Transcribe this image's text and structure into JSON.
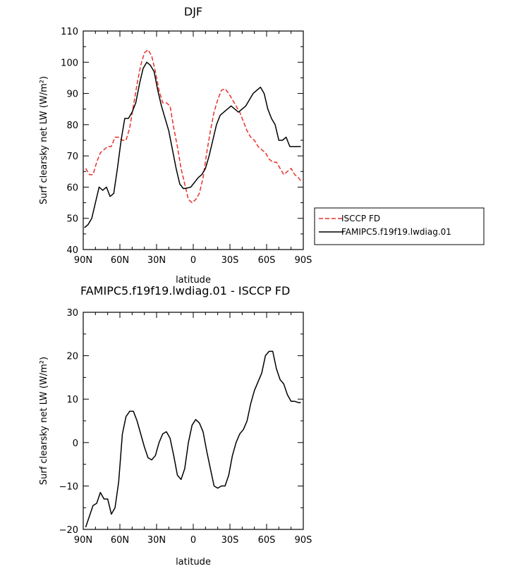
{
  "chart_data": [
    {
      "type": "line",
      "title": "DJF",
      "xlabel": "latitude",
      "ylabel": "Surf clearsky net LW (W/m²)",
      "x_tick_labels": [
        "90N",
        "60N",
        "30N",
        "0",
        "30S",
        "60S",
        "90S"
      ],
      "x_ticks": [
        90,
        60,
        30,
        0,
        -30,
        -60,
        -90
      ],
      "xlim": [
        90,
        -90
      ],
      "ylim": [
        40,
        110
      ],
      "y_ticks": [
        40,
        50,
        60,
        70,
        80,
        90,
        100,
        110
      ],
      "legend_position": "outside-right",
      "series": [
        {
          "name": "ISCCP FD",
          "color": "#e8312a",
          "dash": "dashed",
          "x": [
            88,
            85,
            82,
            79,
            76,
            73,
            70,
            67,
            64,
            61,
            58,
            55,
            52,
            49,
            46,
            43,
            40,
            37,
            34,
            31,
            28,
            25,
            22,
            19,
            16,
            13,
            10,
            7,
            4,
            1,
            -2,
            -5,
            -8,
            -11,
            -14,
            -17,
            -20,
            -23,
            -26,
            -29,
            -32,
            -35,
            -38,
            -41,
            -44,
            -47,
            -50,
            -53,
            -56,
            -59,
            -62,
            -65,
            -68,
            -71,
            -74,
            -77,
            -80,
            -83,
            -86,
            -88
          ],
          "y": [
            66,
            64,
            64,
            68,
            71,
            72,
            73,
            73,
            76,
            76,
            75,
            75,
            79,
            86,
            93,
            99,
            103,
            104,
            102,
            97,
            91,
            87,
            87,
            86,
            79,
            73,
            66,
            61,
            56,
            55,
            56,
            58,
            63,
            71,
            78,
            84,
            88,
            91,
            91.5,
            90,
            88,
            86,
            84,
            81,
            78,
            76,
            75,
            73,
            72,
            71,
            69,
            68,
            68,
            66,
            64,
            65,
            66,
            64,
            63,
            62
          ]
        },
        {
          "name": "FAMIPC5.f19f19.lwdiag.01",
          "color": "#000000",
          "dash": "solid",
          "x": [
            89,
            86,
            83,
            80,
            77,
            74,
            71,
            68,
            65,
            62,
            59,
            56,
            53,
            50,
            47,
            44,
            41,
            38,
            35,
            32,
            29,
            26,
            23,
            20,
            17,
            14,
            11,
            8,
            5,
            2,
            -1,
            -4,
            -7,
            -10,
            -13,
            -16,
            -19,
            -22,
            -25,
            -28,
            -31,
            -34,
            -37,
            -40,
            -43,
            -46,
            -49,
            -52,
            -55,
            -58,
            -61,
            -64,
            -67,
            -70,
            -73,
            -76,
            -79,
            -82,
            -85,
            -88
          ],
          "y": [
            47,
            48,
            50,
            55,
            60,
            59,
            60,
            57,
            58,
            66,
            75,
            82,
            82,
            84,
            87,
            93,
            98,
            100,
            99,
            97,
            91,
            86,
            82,
            78,
            72,
            66,
            61,
            59.5,
            59.7,
            60,
            61.5,
            63,
            64,
            66,
            70,
            75,
            80,
            83,
            84,
            85,
            86,
            85,
            84,
            85,
            86,
            88,
            90,
            91,
            92,
            90,
            85,
            82,
            80,
            75,
            75,
            76,
            73,
            73,
            73,
            73
          ]
        }
      ]
    },
    {
      "type": "line",
      "title": "FAMIPC5.f19f19.lwdiag.01 - ISCCP FD",
      "xlabel": "latitude",
      "ylabel": "Surf clearsky net LW (W/m²)",
      "x_tick_labels": [
        "90N",
        "60N",
        "30N",
        "0",
        "30S",
        "60S",
        "90S"
      ],
      "x_ticks": [
        90,
        60,
        30,
        0,
        -30,
        -60,
        -90
      ],
      "xlim": [
        90,
        -90
      ],
      "ylim": [
        -20,
        30
      ],
      "y_ticks": [
        -20,
        -10,
        0,
        10,
        20,
        30
      ],
      "series": [
        {
          "color": "#000000",
          "x": [
            88,
            85,
            82,
            79,
            76,
            73,
            70,
            67,
            64,
            61,
            58,
            55,
            52,
            49,
            46,
            43,
            40,
            37,
            34,
            31,
            28,
            25,
            22,
            19,
            16,
            13,
            10,
            7,
            4,
            1,
            -2,
            -5,
            -8,
            -11,
            -14,
            -17,
            -20,
            -23,
            -26,
            -29,
            -32,
            -35,
            -38,
            -41,
            -44,
            -47,
            -50,
            -53,
            -56,
            -59,
            -62,
            -65,
            -68,
            -71,
            -74,
            -77,
            -80,
            -83,
            -86,
            -88
          ],
          "y": [
            -19.5,
            -17,
            -14.5,
            -14,
            -11.5,
            -13,
            -13,
            -16.5,
            -15,
            -9,
            2,
            6,
            7.2,
            7.2,
            5,
            2,
            -1,
            -3.5,
            -4,
            -3,
            0,
            2,
            2.5,
            1,
            -3,
            -7.5,
            -8.5,
            -6,
            0,
            4,
            5.3,
            4.5,
            2.5,
            -2,
            -6,
            -10,
            -10.5,
            -10,
            -10,
            -7.5,
            -3,
            0,
            2,
            3,
            5,
            9,
            12,
            14,
            16,
            20,
            21,
            21,
            17,
            14.5,
            13.5,
            11,
            9.5,
            9.5,
            9.2,
            9.2
          ]
        }
      ]
    }
  ],
  "legend": {
    "items": [
      {
        "label": "ISCCP FD"
      },
      {
        "label": "FAMIPC5.f19f19.lwdiag.01"
      }
    ]
  }
}
